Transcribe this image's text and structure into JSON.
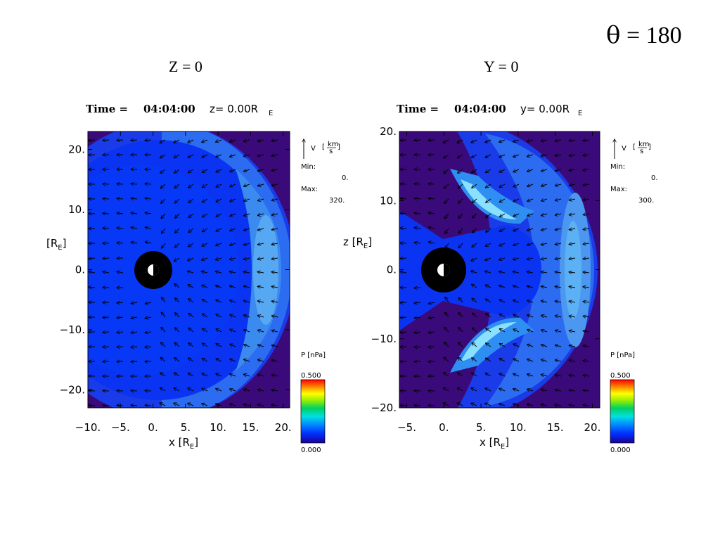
{
  "slide": {
    "theta_symbol": "θ",
    "theta_text": " = 180"
  },
  "panels": [
    {
      "label": "Z = 0",
      "time_prefix": "Time = ",
      "time": "04:04:00",
      "coord_text": "z= 0.00R",
      "coord_sub": "E",
      "x_label": "x [R",
      "x_label_sub": "E",
      "x_label_close": "]",
      "y_label": "[R",
      "y_label_sub": "E",
      "y_label_close": "]",
      "x_ticks": [
        "−10.",
        "−5.",
        "0.",
        "5.",
        "10.",
        "15.",
        "20."
      ],
      "y_ticks": [
        "20.",
        "10.",
        "0.",
        "−10.",
        "−20."
      ],
      "vector_legend": {
        "symbol": "V",
        "unit_num": "km",
        "unit_den": "s",
        "min_label": "Min:",
        "min_value": "0.",
        "max_label": "Max:",
        "max_value": "320."
      },
      "colorbar": {
        "title": "P [nPa]",
        "max": "0.500",
        "min": "0.000"
      }
    },
    {
      "label": "Y = 0",
      "time_prefix": "Time = ",
      "time": "04:04:00",
      "coord_text": "y= 0.00R",
      "coord_sub": "E",
      "x_label": "x [R",
      "x_label_sub": "E",
      "x_label_close": "]",
      "y_label": "z [R",
      "y_label_sub": "E",
      "y_label_close": "]",
      "x_ticks": [
        "−5.",
        "0.",
        "5.",
        "10.",
        "15.",
        "20."
      ],
      "y_ticks": [
        "20.",
        "10.",
        "0.",
        "−10.",
        "−20."
      ],
      "vector_legend": {
        "symbol": "V",
        "unit_num": "km",
        "unit_den": "s",
        "min_label": "Min:",
        "min_value": "0.",
        "max_label": "Max:",
        "max_value": "300."
      },
      "colorbar": {
        "title": "P [nPa]",
        "max": "0.500",
        "min": "0.000"
      }
    }
  ],
  "chart_data": [
    {
      "type": "heatmap",
      "title": "Time = 04:04:00 z= 0.00RE",
      "xlabel": "x [RE]",
      "ylabel": "[RE]",
      "xlim": [
        -10,
        21
      ],
      "ylim": [
        -23,
        23
      ],
      "x_ticks": [
        -10,
        -5,
        0,
        5,
        10,
        15,
        20
      ],
      "y_ticks": [
        20,
        10,
        0,
        -10,
        -20
      ],
      "color_variable": "P [nPa]",
      "color_range": [
        0.0,
        0.5
      ],
      "vector_variable": "V [km/s]",
      "vector_min": 0,
      "vector_max": 320
    },
    {
      "type": "heatmap",
      "title": "Time = 04:04:00 y= 0.00RE",
      "xlabel": "x [RE]",
      "ylabel": "z [RE]",
      "xlim": [
        -6,
        21
      ],
      "ylim": [
        -20,
        20
      ],
      "x_ticks": [
        -5,
        0,
        5,
        10,
        15,
        20
      ],
      "y_ticks": [
        20,
        10,
        0,
        -10,
        -20
      ],
      "color_variable": "P [nPa]",
      "color_range": [
        0.0,
        0.5
      ],
      "vector_variable": "V [km/s]",
      "vector_min": 0,
      "vector_max": 300
    }
  ]
}
